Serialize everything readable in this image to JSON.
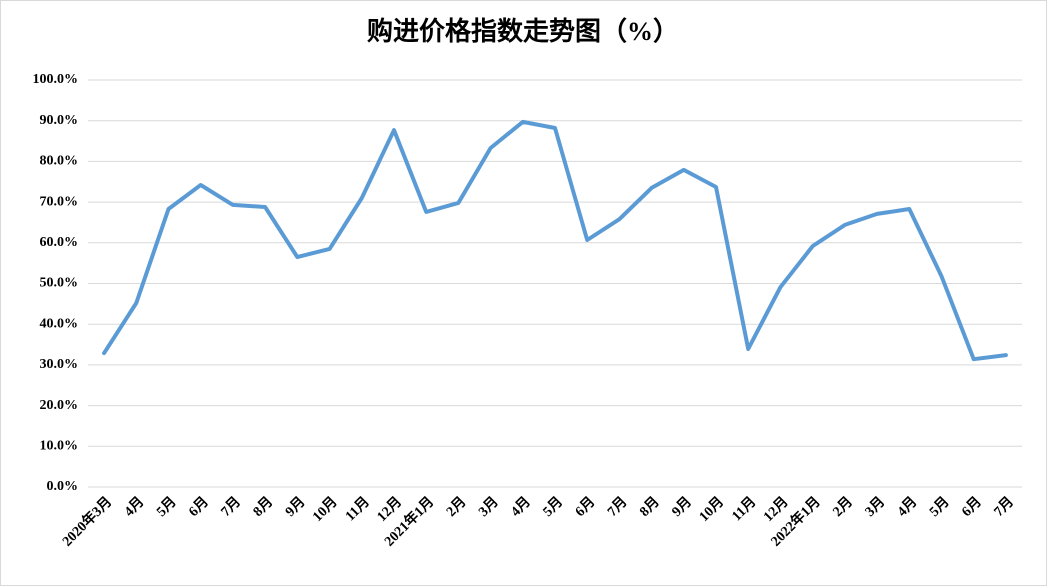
{
  "chart_data": {
    "type": "line",
    "title": "购进价格指数走势图（%）",
    "categories": [
      "2020年3月",
      "4月",
      "5月",
      "6月",
      "7月",
      "8月",
      "9月",
      "10月",
      "11月",
      "12月",
      "2021年1月",
      "2月",
      "3月",
      "4月",
      "5月",
      "6月",
      "7月",
      "8月",
      "9月",
      "10月",
      "11月",
      "12月",
      "2022年1月",
      "2月",
      "3月",
      "4月",
      "5月",
      "6月",
      "7月"
    ],
    "values": [
      32.9,
      45.2,
      68.3,
      74.2,
      69.3,
      68.8,
      56.5,
      58.5,
      71.0,
      87.7,
      67.6,
      69.8,
      83.3,
      89.7,
      88.2,
      60.7,
      65.8,
      73.5,
      77.9,
      73.7,
      33.9,
      49.1,
      59.2,
      64.4,
      67.1,
      68.3,
      51.8,
      31.4,
      32.4
    ],
    "color": "#5b9bd5",
    "ylim": [
      0,
      100
    ],
    "yticks": [
      {
        "value": 0,
        "label": "0.0%"
      },
      {
        "value": 10,
        "label": "10.0%"
      },
      {
        "value": 20,
        "label": "20.0%"
      },
      {
        "value": 30,
        "label": "30.0%"
      },
      {
        "value": 40,
        "label": "40.0%"
      },
      {
        "value": 50,
        "label": "50.0%"
      },
      {
        "value": 60,
        "label": "60.0%"
      },
      {
        "value": 70,
        "label": "70.0%"
      },
      {
        "value": 80,
        "label": "80.0%"
      },
      {
        "value": 90,
        "label": "90.0%"
      },
      {
        "value": 100,
        "label": "100.0%"
      }
    ],
    "grid": true
  }
}
